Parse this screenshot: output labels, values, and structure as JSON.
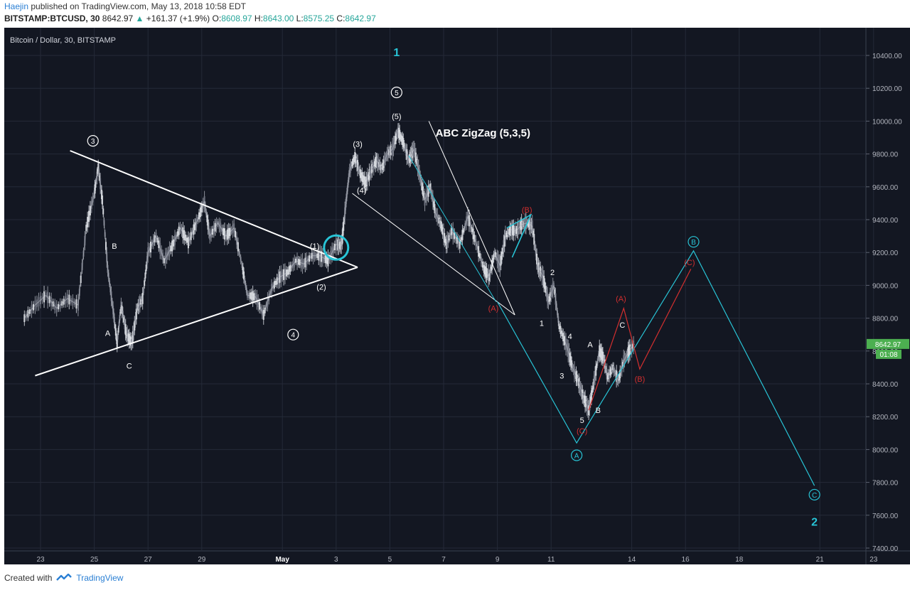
{
  "header": {
    "author": "Haejin",
    "published_text": "published on TradingView.com, May 13, 2018 10:58 EDT",
    "symbol": "BITSTAMP:BTCUSD, 30",
    "last": "8642.97",
    "change_arrow": "▲",
    "change": "+161.37 (+1.9%)",
    "o_label": "O:",
    "o_value": "8608.97",
    "h_label": "H:",
    "h_value": "8643.00",
    "l_label": "L:",
    "l_value": "8575.25",
    "c_label": "C:",
    "c_value": "8642.97"
  },
  "footer": {
    "created_with": "Created with",
    "brand": "TradingView",
    "logo_icon": "tradingview-logo-icon"
  },
  "colors": {
    "background": "#131722",
    "grid": "#242a38",
    "cyan": "#28c4d6",
    "red": "#d32f2f",
    "green": "#26a69a",
    "white": "#ffffff",
    "price_tag": "#4caf50"
  },
  "chart_data": {
    "type": "line",
    "title": "Bitcoin / Dollar, 30, BITSTAMP",
    "ylim": [
      7400,
      10600
    ],
    "yticks": [
      "10400.00",
      "10200.00",
      "10000.00",
      "9800.00",
      "9600.00",
      "9400.00",
      "9200.00",
      "9000.00",
      "8800.00",
      "8600.00",
      "8400.00",
      "8200.00",
      "8000.00",
      "7800.00",
      "7600.00",
      "7400.00"
    ],
    "ytick_values": [
      10400,
      10200,
      10000,
      9800,
      9600,
      9400,
      9200,
      9000,
      8800,
      8600,
      8400,
      8200,
      8000,
      7800,
      7600,
      7400
    ],
    "xticks": [
      {
        "label": "23",
        "t": -8
      },
      {
        "label": "25",
        "t": -6
      },
      {
        "label": "27",
        "t": -4
      },
      {
        "label": "29",
        "t": -2
      },
      {
        "label": "May",
        "t": 1
      },
      {
        "label": "3",
        "t": 3
      },
      {
        "label": "5",
        "t": 5
      },
      {
        "label": "7",
        "t": 7
      },
      {
        "label": "9",
        "t": 9
      },
      {
        "label": "11",
        "t": 11
      },
      {
        "label": "14",
        "t": 14
      },
      {
        "label": "16",
        "t": 16
      },
      {
        "label": "18",
        "t": 18
      },
      {
        "label": "21",
        "t": 21
      },
      {
        "label": "23",
        "t": 23
      }
    ],
    "last_price": "8642.97",
    "countdown": "01:08",
    "price_path": [
      [
        -8.6,
        8800
      ],
      [
        -8.2,
        8880
      ],
      [
        -7.8,
        8940
      ],
      [
        -7.4,
        8860
      ],
      [
        -7.0,
        8920
      ],
      [
        -6.6,
        8880
      ],
      [
        -6.3,
        9350
      ],
      [
        -6.0,
        9560
      ],
      [
        -5.85,
        9720
      ],
      [
        -5.7,
        9520
      ],
      [
        -5.5,
        9100
      ],
      [
        -5.3,
        8850
      ],
      [
        -5.15,
        8650
      ],
      [
        -5.0,
        8880
      ],
      [
        -4.8,
        8700
      ],
      [
        -4.6,
        8650
      ],
      [
        -4.4,
        8860
      ],
      [
        -4.2,
        8920
      ],
      [
        -4.0,
        9200
      ],
      [
        -3.7,
        9300
      ],
      [
        -3.4,
        9150
      ],
      [
        -3.1,
        9240
      ],
      [
        -2.8,
        9350
      ],
      [
        -2.5,
        9260
      ],
      [
        -2.2,
        9380
      ],
      [
        -1.9,
        9510
      ],
      [
        -1.7,
        9300
      ],
      [
        -1.4,
        9380
      ],
      [
        -1.1,
        9300
      ],
      [
        -0.8,
        9350
      ],
      [
        -0.5,
        9120
      ],
      [
        -0.3,
        8940
      ],
      [
        0.0,
        8930
      ],
      [
        0.3,
        8820
      ],
      [
        0.6,
        8980
      ],
      [
        0.9,
        9050
      ],
      [
        1.2,
        9080
      ],
      [
        1.5,
        9150
      ],
      [
        1.8,
        9130
      ],
      [
        2.1,
        9180
      ],
      [
        2.4,
        9180
      ],
      [
        2.7,
        9150
      ],
      [
        3.0,
        9250
      ],
      [
        3.2,
        9240
      ],
      [
        3.35,
        9480
      ],
      [
        3.5,
        9700
      ],
      [
        3.7,
        9780
      ],
      [
        3.9,
        9680
      ],
      [
        4.1,
        9620
      ],
      [
        4.3,
        9700
      ],
      [
        4.5,
        9760
      ],
      [
        4.7,
        9710
      ],
      [
        4.9,
        9800
      ],
      [
        5.1,
        9830
      ],
      [
        5.3,
        9940
      ],
      [
        5.5,
        9870
      ],
      [
        5.7,
        9760
      ],
      [
        5.9,
        9830
      ],
      [
        6.1,
        9680
      ],
      [
        6.3,
        9520
      ],
      [
        6.5,
        9600
      ],
      [
        6.7,
        9440
      ],
      [
        6.9,
        9370
      ],
      [
        7.1,
        9250
      ],
      [
        7.3,
        9330
      ],
      [
        7.6,
        9250
      ],
      [
        7.9,
        9420
      ],
      [
        8.2,
        9260
      ],
      [
        8.5,
        9100
      ],
      [
        8.7,
        9050
      ],
      [
        8.9,
        9200
      ],
      [
        9.1,
        9120
      ],
      [
        9.3,
        9300
      ],
      [
        9.5,
        9340
      ],
      [
        9.7,
        9330
      ],
      [
        9.9,
        9370
      ],
      [
        10.1,
        9380
      ],
      [
        10.3,
        9360
      ],
      [
        10.5,
        9120
      ],
      [
        10.7,
        9050
      ],
      [
        10.9,
        8900
      ],
      [
        11.1,
        9000
      ],
      [
        11.3,
        8750
      ],
      [
        11.6,
        8620
      ],
      [
        11.8,
        8500
      ],
      [
        12.0,
        8420
      ],
      [
        12.2,
        8320
      ],
      [
        12.4,
        8240
      ],
      [
        12.6,
        8420
      ],
      [
        12.8,
        8600
      ],
      [
        12.95,
        8560
      ],
      [
        13.1,
        8440
      ],
      [
        13.3,
        8500
      ],
      [
        13.5,
        8420
      ],
      [
        13.7,
        8540
      ],
      [
        13.9,
        8600
      ],
      [
        14.1,
        8643
      ]
    ],
    "series": [
      {
        "name": "triangle-upper",
        "color": "#ffffff",
        "width": 2,
        "points": [
          [
            -6.9,
            9820
          ],
          [
            3.8,
            9110
          ]
        ]
      },
      {
        "name": "triangle-lower",
        "color": "#ffffff",
        "width": 2,
        "points": [
          [
            -8.2,
            8450
          ],
          [
            3.8,
            9110
          ]
        ]
      },
      {
        "name": "thin-upper",
        "color": "#ffffff",
        "width": 1,
        "points": [
          [
            6.45,
            10000
          ],
          [
            9.65,
            8820
          ]
        ]
      },
      {
        "name": "thin-lower",
        "color": "#ffffff",
        "width": 1,
        "points": [
          [
            3.6,
            9560
          ],
          [
            9.65,
            8820
          ]
        ]
      },
      {
        "name": "cyan-channel-1",
        "color": "#28c4d6",
        "width": 1,
        "points": [
          [
            5.7,
            9790
          ],
          [
            8.95,
            8900
          ]
        ]
      },
      {
        "name": "cyan-triangle",
        "color": "#28c4d6",
        "width": 1.5,
        "points": [
          [
            9.35,
            9350
          ],
          [
            10.25,
            9430
          ],
          [
            9.55,
            9170
          ],
          [
            10.15,
            9390
          ]
        ]
      },
      {
        "name": "cyan-projection",
        "color": "#28c4d6",
        "width": 1.2,
        "points": [
          [
            9.0,
            8900
          ],
          [
            11.95,
            8040
          ],
          [
            16.3,
            9210
          ],
          [
            20.8,
            7780
          ]
        ]
      },
      {
        "name": "red-projection",
        "color": "#d32f2f",
        "width": 1.2,
        "points": [
          [
            12.4,
            8240
          ],
          [
            13.7,
            8860
          ],
          [
            14.3,
            8490
          ],
          [
            16.2,
            9100
          ]
        ]
      }
    ],
    "annotations": [
      {
        "text": "1",
        "t": 5.25,
        "y": 10420,
        "color": "#28c4d6",
        "size": 16,
        "bold": true
      },
      {
        "text": "5",
        "t": 5.25,
        "y": 10175,
        "circle": true,
        "color": "#ffffff"
      },
      {
        "text": "(5)",
        "t": 5.25,
        "y": 10030,
        "color": "#ffffff"
      },
      {
        "text": "ABC ZigZag (5,3,5)",
        "t": 6.7,
        "y": 9930,
        "color": "#ffffff",
        "size": 15,
        "bold": true,
        "anchor": "start"
      },
      {
        "text": "3",
        "t": -6.05,
        "y": 9880,
        "circle": true,
        "color": "#ffffff"
      },
      {
        "text": "(3)",
        "t": 3.8,
        "y": 9860,
        "color": "#ffffff"
      },
      {
        "text": "(4)",
        "t": 3.95,
        "y": 9580,
        "color": "#ffffff"
      },
      {
        "text": "(1)",
        "t": 2.2,
        "y": 9240,
        "color": "#ffffff"
      },
      {
        "text": "(2)",
        "t": 2.45,
        "y": 8990,
        "color": "#ffffff"
      },
      {
        "text": "4",
        "t": 1.4,
        "y": 8700,
        "circle": true,
        "color": "#ffffff"
      },
      {
        "text": "B",
        "t": -5.25,
        "y": 9240,
        "color": "#ffffff"
      },
      {
        "text": "A",
        "t": -5.5,
        "y": 8710,
        "color": "#ffffff"
      },
      {
        "text": "C",
        "t": -4.7,
        "y": 8510,
        "color": "#ffffff"
      },
      {
        "text": "(B)",
        "t": 10.1,
        "y": 9460,
        "color": "#d32f2f"
      },
      {
        "text": "(A)",
        "t": 8.85,
        "y": 8860,
        "color": "#d32f2f"
      },
      {
        "text": "2",
        "t": 11.05,
        "y": 9080,
        "color": "#ffffff"
      },
      {
        "text": "1",
        "t": 10.65,
        "y": 8770,
        "color": "#ffffff"
      },
      {
        "text": "4",
        "t": 11.7,
        "y": 8690,
        "color": "#ffffff"
      },
      {
        "text": "3",
        "t": 11.4,
        "y": 8450,
        "color": "#ffffff"
      },
      {
        "text": "5",
        "t": 12.15,
        "y": 8180,
        "color": "#ffffff"
      },
      {
        "text": "(C)",
        "t": 12.15,
        "y": 8115,
        "color": "#d32f2f"
      },
      {
        "text": "A",
        "t": 12.45,
        "y": 8640,
        "color": "#ffffff"
      },
      {
        "text": "B",
        "t": 12.75,
        "y": 8240,
        "color": "#ffffff"
      },
      {
        "text": "C",
        "t": 13.65,
        "y": 8760,
        "color": "#ffffff"
      },
      {
        "text": "(A)",
        "t": 13.6,
        "y": 8920,
        "color": "#d32f2f"
      },
      {
        "text": "(B)",
        "t": 14.3,
        "y": 8430,
        "color": "#d32f2f"
      },
      {
        "text": "(C)",
        "t": 16.15,
        "y": 9140,
        "color": "#d32f2f"
      },
      {
        "text": "A",
        "t": 11.95,
        "y": 7965,
        "circle": true,
        "color": "#28c4d6"
      },
      {
        "text": "B",
        "t": 16.3,
        "y": 9265,
        "circle": true,
        "color": "#28c4d6"
      },
      {
        "text": "C",
        "t": 20.8,
        "y": 7725,
        "circle": true,
        "color": "#28c4d6"
      },
      {
        "text": "2",
        "t": 20.8,
        "y": 7560,
        "color": "#28c4d6",
        "size": 16,
        "bold": true
      }
    ],
    "highlight_circle": {
      "t": 3.0,
      "y": 9230
    }
  }
}
